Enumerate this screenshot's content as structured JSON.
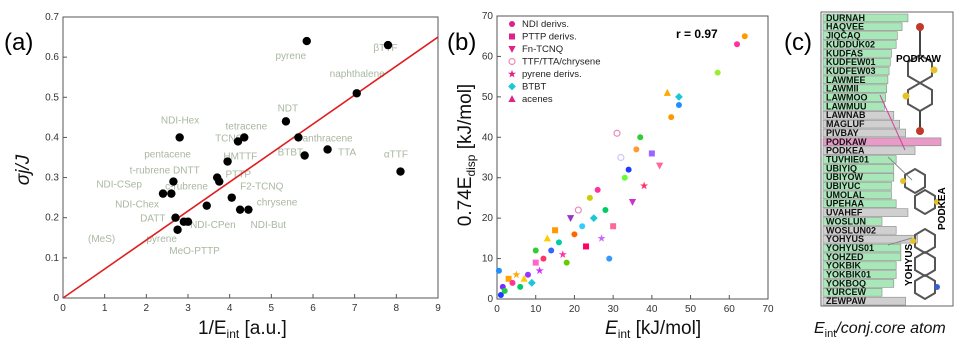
{
  "panel_labels": [
    "(a)",
    "(b)",
    "(c)"
  ],
  "chart_data": [
    {
      "type": "scatter",
      "panel": "(a)",
      "xlabel_main": "1/E",
      "xlabel_sub": "int",
      "xlabel_unit": " [a.u.]",
      "ylabel": "σj/J",
      "xlim": [
        0,
        9
      ],
      "ylim": [
        0,
        0.7
      ],
      "x_ticks": [
        0,
        1,
        2,
        3,
        4,
        5,
        6,
        7,
        8,
        9
      ],
      "y_ticks": [
        0,
        0.1,
        0.2,
        0.3,
        0.4,
        0.5,
        0.6,
        0.7
      ],
      "points": [
        [
          5.85,
          0.64
        ],
        [
          7.8,
          0.63
        ],
        [
          7.05,
          0.51
        ],
        [
          8.1,
          0.315
        ],
        [
          5.35,
          0.44
        ],
        [
          5.65,
          0.4
        ],
        [
          6.35,
          0.37
        ],
        [
          5.8,
          0.355
        ],
        [
          4.35,
          0.4
        ],
        [
          4.2,
          0.39
        ],
        [
          3.95,
          0.34
        ],
        [
          3.7,
          0.3
        ],
        [
          3.75,
          0.29
        ],
        [
          4.05,
          0.25
        ],
        [
          4.25,
          0.22
        ],
        [
          4.45,
          0.22
        ],
        [
          2.8,
          0.4
        ],
        [
          2.65,
          0.29
        ],
        [
          2.4,
          0.26
        ],
        [
          2.6,
          0.26
        ],
        [
          3.45,
          0.23
        ],
        [
          2.7,
          0.2
        ],
        [
          2.9,
          0.19
        ],
        [
          3.0,
          0.19
        ],
        [
          2.75,
          0.17
        ]
      ],
      "fit_line": {
        "x": [
          0,
          9
        ],
        "y": [
          0,
          0.65
        ]
      },
      "annotations": [
        {
          "text": "pyrene",
          "x": 5.1,
          "y": 0.595
        },
        {
          "text": "βTTF",
          "x": 7.45,
          "y": 0.615
        },
        {
          "text": "naphthalene",
          "x": 6.4,
          "y": 0.55
        },
        {
          "text": "NDT",
          "x": 5.15,
          "y": 0.465
        },
        {
          "text": "NDI-Hex",
          "x": 2.35,
          "y": 0.435
        },
        {
          "text": "tetracene",
          "x": 3.9,
          "y": 0.42
        },
        {
          "text": "TCNQ",
          "x": 3.65,
          "y": 0.39
        },
        {
          "text": "anthracene",
          "x": 5.75,
          "y": 0.39
        },
        {
          "text": "pentacene",
          "x": 1.95,
          "y": 0.35
        },
        {
          "text": "HMTTF",
          "x": 3.85,
          "y": 0.345
        },
        {
          "text": "BTBT",
          "x": 5.15,
          "y": 0.355
        },
        {
          "text": "TTA",
          "x": 6.6,
          "y": 0.355
        },
        {
          "text": "αTTF",
          "x": 7.7,
          "y": 0.35
        },
        {
          "text": "PTTP",
          "x": 3.9,
          "y": 0.3
        },
        {
          "text": "t-rubrene DNTT",
          "x": 1.6,
          "y": 0.31
        },
        {
          "text": "NDI-CSep",
          "x": 0.8,
          "y": 0.275
        },
        {
          "text": "c-rubrene",
          "x": 2.45,
          "y": 0.27
        },
        {
          "text": "F2-TCNQ",
          "x": 4.25,
          "y": 0.27
        },
        {
          "text": "NDI-Chex",
          "x": 1.25,
          "y": 0.225
        },
        {
          "text": "chrysene",
          "x": 4.65,
          "y": 0.23
        },
        {
          "text": "DATT",
          "x": 1.85,
          "y": 0.19
        },
        {
          "text": "NDI-CPen",
          "x": 3.05,
          "y": 0.175
        },
        {
          "text": "NDI-But",
          "x": 4.5,
          "y": 0.175
        },
        {
          "text": "(MeS)",
          "x": 0.6,
          "y": 0.14
        },
        {
          "text": "pyrene",
          "x": 2.0,
          "y": 0.14
        },
        {
          "text": "MeO-PTTP",
          "x": 2.55,
          "y": 0.11
        }
      ]
    },
    {
      "type": "scatter",
      "panel": "(b)",
      "xlabel_main": "E",
      "xlabel_sub": "int",
      "xlabel_unit": " [kJ/mol]",
      "ylabel_pre": "0.74E",
      "ylabel_sub": "disp",
      "ylabel_unit": " [kJ/mol]",
      "xlim": [
        0,
        70
      ],
      "ylim": [
        0,
        70
      ],
      "x_ticks": [
        0,
        10,
        20,
        30,
        40,
        50,
        60,
        70
      ],
      "y_ticks": [
        0,
        10,
        20,
        30,
        40,
        50,
        60,
        70
      ],
      "r_text": "r = 0.97",
      "legend": [
        {
          "label": "NDI derivs.",
          "marker": "circle",
          "color": "#e0218a"
        },
        {
          "label": "PTTP derivs.",
          "marker": "square",
          "color": "#e0218a"
        },
        {
          "label": "Fn-TCNQ",
          "marker": "tri-down",
          "color": "#e0218a"
        },
        {
          "label": "TTF/TTA/chrysene",
          "marker": "circle-open",
          "color": "#e98ab8"
        },
        {
          "label": "pyrene derivs.",
          "marker": "star",
          "color": "#e0218a"
        },
        {
          "label": "BTBT",
          "marker": "diamond",
          "color": "#19c7d6"
        },
        {
          "label": "acenes",
          "marker": "tri-up",
          "color": "#e0218a"
        }
      ],
      "points": [
        [
          0.5,
          7,
          "circle",
          "#1e90ff"
        ],
        [
          1,
          1,
          "circle",
          "#1e3cff"
        ],
        [
          1.5,
          3,
          "circle",
          "#7b2cff"
        ],
        [
          2,
          2,
          "circle",
          "#22cc44"
        ],
        [
          3,
          5,
          "square",
          "#ffa500"
        ],
        [
          4,
          4,
          "circle",
          "#ff3399"
        ],
        [
          5,
          6,
          "star",
          "#ffaa00"
        ],
        [
          6,
          3,
          "circle",
          "#00cc66"
        ],
        [
          7,
          5,
          "tri-up",
          "#ffcc00"
        ],
        [
          8,
          6,
          "circle",
          "#9933ff"
        ],
        [
          9,
          4,
          "diamond",
          "#19c7d6"
        ],
        [
          10,
          12,
          "circle",
          "#33cc33"
        ],
        [
          10,
          9,
          "square",
          "#ff66cc"
        ],
        [
          11,
          7,
          "star",
          "#cc33ff"
        ],
        [
          12,
          10,
          "circle",
          "#ff3366"
        ],
        [
          13,
          15,
          "tri-up",
          "#ffcc00"
        ],
        [
          14,
          12,
          "circle",
          "#3366ff"
        ],
        [
          15,
          17,
          "square",
          "#ff9900"
        ],
        [
          16,
          14,
          "circle",
          "#00ccaa"
        ],
        [
          17,
          11,
          "star",
          "#ff33aa"
        ],
        [
          18,
          9,
          "circle",
          "#66cc00"
        ],
        [
          19,
          20,
          "tri-down",
          "#9933cc"
        ],
        [
          20,
          16,
          "circle",
          "#ff6600"
        ],
        [
          21,
          22,
          "circle-open",
          "#e98ab8"
        ],
        [
          22,
          18,
          "circle",
          "#33ccff"
        ],
        [
          23,
          13,
          "square",
          "#ff0066"
        ],
        [
          24,
          25,
          "circle",
          "#cccc00"
        ],
        [
          25,
          20,
          "diamond",
          "#19c7d6"
        ],
        [
          26,
          27,
          "circle",
          "#ff3399"
        ],
        [
          27,
          15,
          "star",
          "#cc66ff"
        ],
        [
          28,
          22,
          "circle",
          "#00cc66"
        ],
        [
          29,
          10,
          "circle",
          "#3399ff"
        ],
        [
          30,
          18,
          "square",
          "#ff6699"
        ],
        [
          31,
          41,
          "circle-open",
          "#e98ab8"
        ],
        [
          32,
          35,
          "circle-open",
          "#c8c8ff"
        ],
        [
          33,
          30,
          "circle",
          "#66ff33"
        ],
        [
          34,
          32,
          "circle",
          "#1e3cff"
        ],
        [
          35,
          24,
          "tri-down",
          "#cc33cc"
        ],
        [
          36,
          37,
          "circle",
          "#ff9933"
        ],
        [
          37,
          40,
          "circle",
          "#33cc33"
        ],
        [
          38,
          28,
          "star",
          "#ff3366"
        ],
        [
          40,
          36,
          "square",
          "#9966ff"
        ],
        [
          42,
          33,
          "tri-down",
          "#ff6699"
        ],
        [
          44,
          51,
          "tri-up",
          "#ffaa00"
        ],
        [
          45,
          45,
          "circle",
          "#ff9900"
        ],
        [
          47,
          48,
          "circle",
          "#1e90ff"
        ],
        [
          47,
          50,
          "diamond",
          "#19c7d6"
        ],
        [
          57,
          56,
          "circle",
          "#99ee33"
        ],
        [
          62,
          63,
          "circle",
          "#ff3399"
        ],
        [
          64,
          65,
          "circle",
          "#ff9900"
        ]
      ]
    }
  ],
  "panel_c": {
    "title_pre": "E",
    "title_sub": "int",
    "title_post": "/conj.core atom",
    "items": [
      {
        "code": "DURNAH",
        "fraction": 0.72,
        "color": "#a8e8b8"
      },
      {
        "code": "HAQVEE",
        "fraction": 0.67,
        "color": "#a8e8b8"
      },
      {
        "code": "JIQCAQ",
        "fraction": 0.63,
        "color": "#a8e8b8"
      },
      {
        "code": "KUDDUK02",
        "fraction": 0.62,
        "color": "#a8e8b8"
      },
      {
        "code": "KUDFAS",
        "fraction": 0.58,
        "color": "#a8e8b8"
      },
      {
        "code": "KUDFEW01",
        "fraction": 0.57,
        "color": "#a8e8b8"
      },
      {
        "code": "KUDFEW03",
        "fraction": 0.56,
        "color": "#a8e8b8"
      },
      {
        "code": "LAWMEE",
        "fraction": 0.55,
        "color": "#a8e8b8"
      },
      {
        "code": "LAWMII",
        "fraction": 0.54,
        "color": "#a8e8b8"
      },
      {
        "code": "LAWMOO",
        "fraction": 0.53,
        "color": "#a8e8b8"
      },
      {
        "code": "LAWMUU",
        "fraction": 0.52,
        "color": "#a8e8b8"
      },
      {
        "code": "LAWNAB",
        "fraction": 0.6,
        "color": "#d0d0d0"
      },
      {
        "code": "MAGLUF",
        "fraction": 0.65,
        "color": "#d0d0d0"
      },
      {
        "code": "PIVBAY",
        "fraction": 0.7,
        "color": "#d0d0d0"
      },
      {
        "code": "PODKAW",
        "fraction": 1.0,
        "color": "#e89ac8"
      },
      {
        "code": "PODKEA",
        "fraction": 0.78,
        "color": "#d0d0d0"
      },
      {
        "code": "TUVHIE01",
        "fraction": 0.62,
        "color": "#a8e8b8"
      },
      {
        "code": "UBIYIQ",
        "fraction": 0.6,
        "color": "#a8e8b8"
      },
      {
        "code": "UBIYOW",
        "fraction": 0.6,
        "color": "#a8e8b8"
      },
      {
        "code": "UBIYUC",
        "fraction": 0.58,
        "color": "#a8e8b8"
      },
      {
        "code": "UMOLAL",
        "fraction": 0.58,
        "color": "#a8e8b8"
      },
      {
        "code": "UPEHAA",
        "fraction": 0.62,
        "color": "#a8e8b8"
      },
      {
        "code": "UVAHEF",
        "fraction": 0.72,
        "color": "#d0d0d0"
      },
      {
        "code": "WOSLUN",
        "fraction": 0.5,
        "color": "#a8e8b8"
      },
      {
        "code": "WOSLUN02",
        "fraction": 0.62,
        "color": "#d0d0d0"
      },
      {
        "code": "YOHYUS",
        "fraction": 0.8,
        "color": "#d0d0d0"
      },
      {
        "code": "YOHYUS01",
        "fraction": 0.66,
        "color": "#a8e8b8"
      },
      {
        "code": "YOHZED",
        "fraction": 0.66,
        "color": "#a8e8b8"
      },
      {
        "code": "YOKBIK",
        "fraction": 0.62,
        "color": "#a8e8b8"
      },
      {
        "code": "YOKBIK01",
        "fraction": 0.62,
        "color": "#a8e8b8"
      },
      {
        "code": "YOKBOQ",
        "fraction": 0.6,
        "color": "#a8e8b8"
      },
      {
        "code": "YURCEW",
        "fraction": 0.5,
        "color": "#a8e8b8"
      },
      {
        "code": "ZEWPAW",
        "fraction": 0.7,
        "color": "#d0d0d0"
      }
    ],
    "molecule_labels": [
      "PODKAW",
      "PODKEA",
      "YOHYUS"
    ]
  }
}
